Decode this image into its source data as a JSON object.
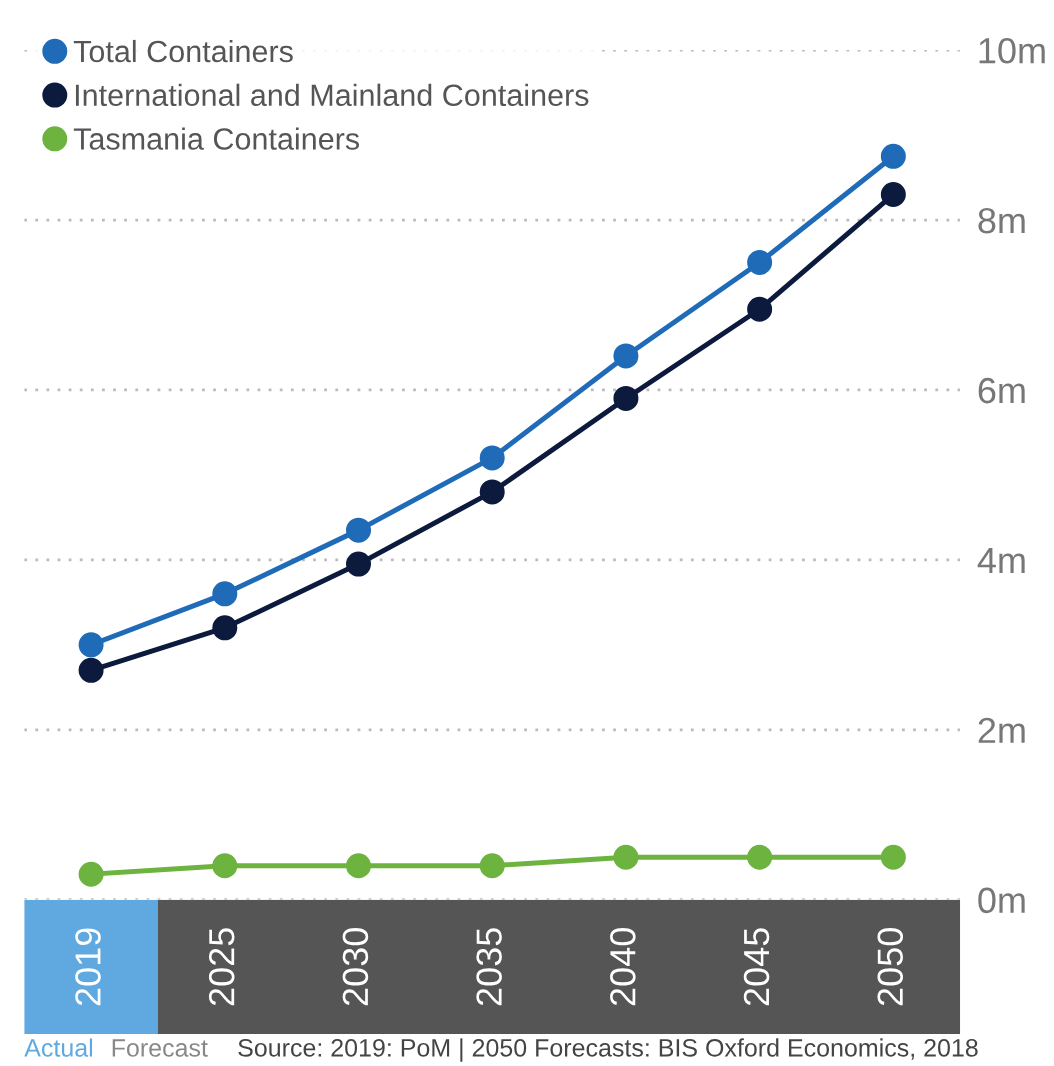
{
  "chart_data": {
    "type": "line",
    "categories": [
      "2019",
      "2025",
      "2030",
      "2035",
      "2040",
      "2045",
      "2050"
    ],
    "series": [
      {
        "name": "Total Containers",
        "color": "#1f6bb8",
        "values": [
          3.0,
          3.6,
          4.35,
          5.2,
          6.4,
          7.5,
          8.75
        ]
      },
      {
        "name": "International and Mainland Containers",
        "color": "#0b1a3d",
        "values": [
          2.7,
          3.2,
          3.95,
          4.8,
          5.9,
          6.95,
          8.3
        ]
      },
      {
        "name": "Tasmania Containers",
        "color": "#6db33f",
        "values": [
          0.3,
          0.4,
          0.4,
          0.4,
          0.5,
          0.5,
          0.5
        ]
      }
    ],
    "ylim": [
      0,
      10
    ],
    "yticks": [
      {
        "value": 0,
        "label": "0m"
      },
      {
        "value": 2,
        "label": "2m"
      },
      {
        "value": 4,
        "label": "4m"
      },
      {
        "value": 6,
        "label": "6m"
      },
      {
        "value": 8,
        "label": "8m"
      },
      {
        "value": 10,
        "label": "10m"
      }
    ],
    "grid": "y",
    "legend": "top left",
    "marker": "circle",
    "line_style": "solid",
    "annotations": [
      "Actual",
      "Forecast",
      "Source: 2019: PoM | 2050 Forecasts: BIS Oxford Economics, 2018"
    ]
  }
}
